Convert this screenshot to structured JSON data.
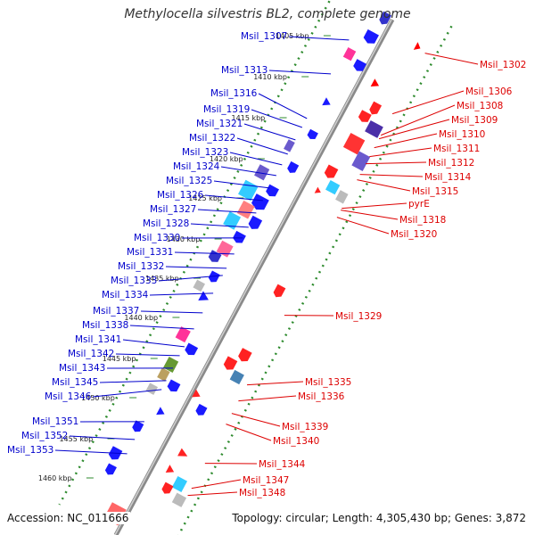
{
  "title": "Methylocella silvestris BL2, complete genome",
  "footer": {
    "accession": "Accession: NC_011666",
    "topology": "Topology: circular; Length: 4,305,430 bp; Genes: 3,872"
  },
  "colors": {
    "backbone": "#999999",
    "ticks_green": "#228B22",
    "left_label": "#0000cc",
    "right_label": "#dd0000"
  },
  "ticks": [
    "1405 kbp",
    "1410 kbp",
    "1415 kbp",
    "1420 kbp",
    "1425 kbp",
    "1430 kbp",
    "1435 kbp",
    "1440 kbp",
    "1445 kbp",
    "1450 kbp",
    "1455 kbp",
    "1460 kbp"
  ],
  "left_labels": [
    "Msil_1307",
    "Msil_1313",
    "Msil_1316",
    "Msil_1319",
    "Msil_1321",
    "Msil_1322",
    "Msil_1323",
    "Msil_1324",
    "Msil_1325",
    "Msil_1326",
    "Msil_1327",
    "Msil_1328",
    "Msil_1330",
    "Msil_1331",
    "Msil_1332",
    "Msil_1333",
    "Msil_1334",
    "Msil_1337",
    "Msil_1338",
    "Msil_1341",
    "Msil_1342",
    "Msil_1343",
    "Msil_1345",
    "Msil_1346",
    "Msil_1351",
    "Msil_1352",
    "Msil_1353"
  ],
  "right_labels": [
    "Msil_1302",
    "Msil_1306",
    "Msil_1308",
    "Msil_1309",
    "Msil_1310",
    "Msil_1311",
    "Msil_1312",
    "Msil_1314",
    "Msil_1315",
    "pyrE",
    "Msil_1318",
    "Msil_1320",
    "Msil_1329",
    "Msil_1335",
    "Msil_1336",
    "Msil_1339",
    "Msil_1340",
    "Msil_1344",
    "Msil_1347",
    "Msil_1348"
  ]
}
